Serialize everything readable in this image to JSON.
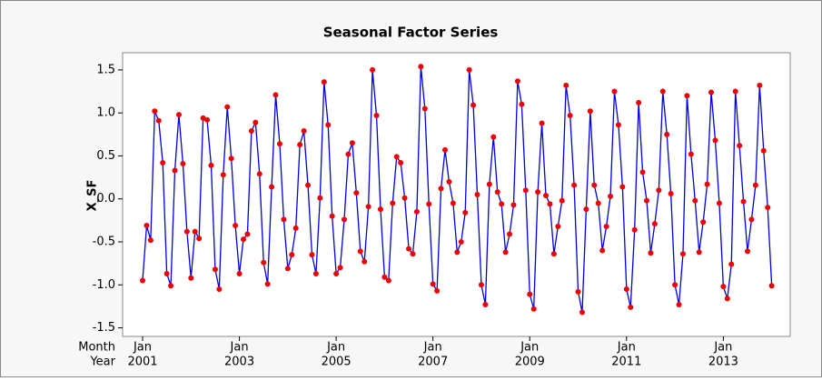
{
  "chart_data": {
    "type": "line",
    "title": "Seasonal Factor Series",
    "y_label": "X_SF",
    "x_row_labels": [
      "Month",
      "Year"
    ],
    "x": [
      "2001-01",
      "2001-02",
      "2001-03",
      "2001-04",
      "2001-05",
      "2001-06",
      "2001-07",
      "2001-08",
      "2001-09",
      "2001-10",
      "2001-11",
      "2001-12",
      "2002-01",
      "2002-02",
      "2002-03",
      "2002-04",
      "2002-05",
      "2002-06",
      "2002-07",
      "2002-08",
      "2002-09",
      "2002-10",
      "2002-11",
      "2002-12",
      "2003-01",
      "2003-02",
      "2003-03",
      "2003-04",
      "2003-05",
      "2003-06",
      "2003-07",
      "2003-08",
      "2003-09",
      "2003-10",
      "2003-11",
      "2003-12",
      "2004-01",
      "2004-02",
      "2004-03",
      "2004-04",
      "2004-05",
      "2004-06",
      "2004-07",
      "2004-08",
      "2004-09",
      "2004-10",
      "2004-11",
      "2004-12",
      "2005-01",
      "2005-02",
      "2005-03",
      "2005-04",
      "2005-05",
      "2005-06",
      "2005-07",
      "2005-08",
      "2005-09",
      "2005-10",
      "2005-11",
      "2005-12",
      "2006-01",
      "2006-02",
      "2006-03",
      "2006-04",
      "2006-05",
      "2006-06",
      "2006-07",
      "2006-08",
      "2006-09",
      "2006-10",
      "2006-11",
      "2006-12",
      "2007-01",
      "2007-02",
      "2007-03",
      "2007-04",
      "2007-05",
      "2007-06",
      "2007-07",
      "2007-08",
      "2007-09",
      "2007-10",
      "2007-11",
      "2007-12",
      "2008-01",
      "2008-02",
      "2008-03",
      "2008-04",
      "2008-05",
      "2008-06",
      "2008-07",
      "2008-08",
      "2008-09",
      "2008-10",
      "2008-11",
      "2008-12",
      "2009-01",
      "2009-02",
      "2009-03",
      "2009-04",
      "2009-05",
      "2009-06",
      "2009-07",
      "2009-08",
      "2009-09",
      "2009-10",
      "2009-11",
      "2009-12",
      "2010-01",
      "2010-02",
      "2010-03",
      "2010-04",
      "2010-05",
      "2010-06",
      "2010-07",
      "2010-08",
      "2010-09",
      "2010-10",
      "2010-11",
      "2010-12",
      "2011-01",
      "2011-02",
      "2011-03",
      "2011-04",
      "2011-05",
      "2011-06",
      "2011-07",
      "2011-08",
      "2011-09",
      "2011-10",
      "2011-11",
      "2011-12",
      "2012-01",
      "2012-02",
      "2012-03",
      "2012-04",
      "2012-05",
      "2012-06",
      "2012-07",
      "2012-08",
      "2012-09",
      "2012-10",
      "2012-11",
      "2012-12",
      "2013-01",
      "2013-02",
      "2013-03",
      "2013-04",
      "2013-05",
      "2013-06",
      "2013-07",
      "2013-08",
      "2013-09",
      "2013-10",
      "2013-11",
      "2013-12",
      "2014-01"
    ],
    "series": [
      {
        "name": "X_SF",
        "color": "#0000e0",
        "marker_color": "#ee0000",
        "values": [
          -0.95,
          -0.31,
          -0.48,
          1.02,
          0.91,
          0.42,
          -0.87,
          -1.01,
          0.33,
          0.98,
          0.41,
          -0.38,
          -0.92,
          -0.38,
          -0.46,
          0.94,
          0.92,
          0.39,
          -0.82,
          -1.05,
          0.28,
          1.07,
          0.47,
          -0.31,
          -0.87,
          -0.47,
          -0.41,
          0.79,
          0.89,
          0.29,
          -0.74,
          -0.99,
          0.14,
          1.21,
          0.64,
          -0.24,
          -0.81,
          -0.65,
          -0.34,
          0.63,
          0.79,
          0.16,
          -0.65,
          -0.87,
          0.01,
          1.36,
          0.86,
          -0.2,
          -0.87,
          -0.8,
          -0.24,
          0.52,
          0.65,
          0.07,
          -0.61,
          -0.73,
          -0.09,
          1.5,
          0.97,
          -0.12,
          -0.91,
          -0.95,
          -0.05,
          0.49,
          0.42,
          0.01,
          -0.58,
          -0.64,
          -0.15,
          1.54,
          1.05,
          -0.06,
          -0.99,
          -1.07,
          0.12,
          0.57,
          0.2,
          -0.05,
          -0.62,
          -0.5,
          -0.16,
          1.5,
          1.09,
          0.05,
          -1.0,
          -1.23,
          0.17,
          0.72,
          0.08,
          -0.06,
          -0.62,
          -0.41,
          -0.07,
          1.37,
          1.1,
          0.1,
          -1.11,
          -1.28,
          0.08,
          0.88,
          0.04,
          -0.06,
          -0.64,
          -0.32,
          -0.02,
          1.32,
          0.97,
          0.16,
          -1.08,
          -1.32,
          -0.12,
          1.02,
          0.16,
          -0.05,
          -0.6,
          -0.32,
          0.03,
          1.25,
          0.86,
          0.14,
          -1.05,
          -1.26,
          -0.36,
          1.12,
          0.31,
          -0.02,
          -0.63,
          -0.29,
          0.1,
          1.25,
          0.75,
          0.06,
          -1.0,
          -1.23,
          -0.64,
          1.2,
          0.52,
          -0.02,
          -0.62,
          -0.27,
          0.17,
          1.24,
          0.68,
          -0.05,
          -1.02,
          -1.16,
          -0.76,
          1.25,
          0.62,
          -0.03,
          -0.61,
          -0.24,
          0.16,
          1.32,
          0.56,
          -0.1,
          -1.01
        ]
      }
    ],
    "xticks": [
      {
        "value": "2001-01",
        "label": [
          "Jan",
          "2001"
        ]
      },
      {
        "value": "2003-01",
        "label": [
          "Jan",
          "2003"
        ]
      },
      {
        "value": "2005-01",
        "label": [
          "Jan",
          "2005"
        ]
      },
      {
        "value": "2007-01",
        "label": [
          "Jan",
          "2007"
        ]
      },
      {
        "value": "2009-01",
        "label": [
          "Jan",
          "2009"
        ]
      },
      {
        "value": "2011-01",
        "label": [
          "Jan",
          "2011"
        ]
      },
      {
        "value": "2013-01",
        "label": [
          "Jan",
          "2013"
        ]
      }
    ],
    "ylim": [
      -1.6,
      1.7
    ],
    "yticks": [
      {
        "value": -1.5,
        "label": "-1.5"
      },
      {
        "value": -1.0,
        "label": "-1.0"
      },
      {
        "value": -0.5,
        "label": "-0.5"
      },
      {
        "value": 0.0,
        "label": "0.0"
      },
      {
        "value": 0.5,
        "label": "0.5"
      },
      {
        "value": 1.0,
        "label": "1.0"
      },
      {
        "value": 1.5,
        "label": "1.5"
      }
    ]
  }
}
